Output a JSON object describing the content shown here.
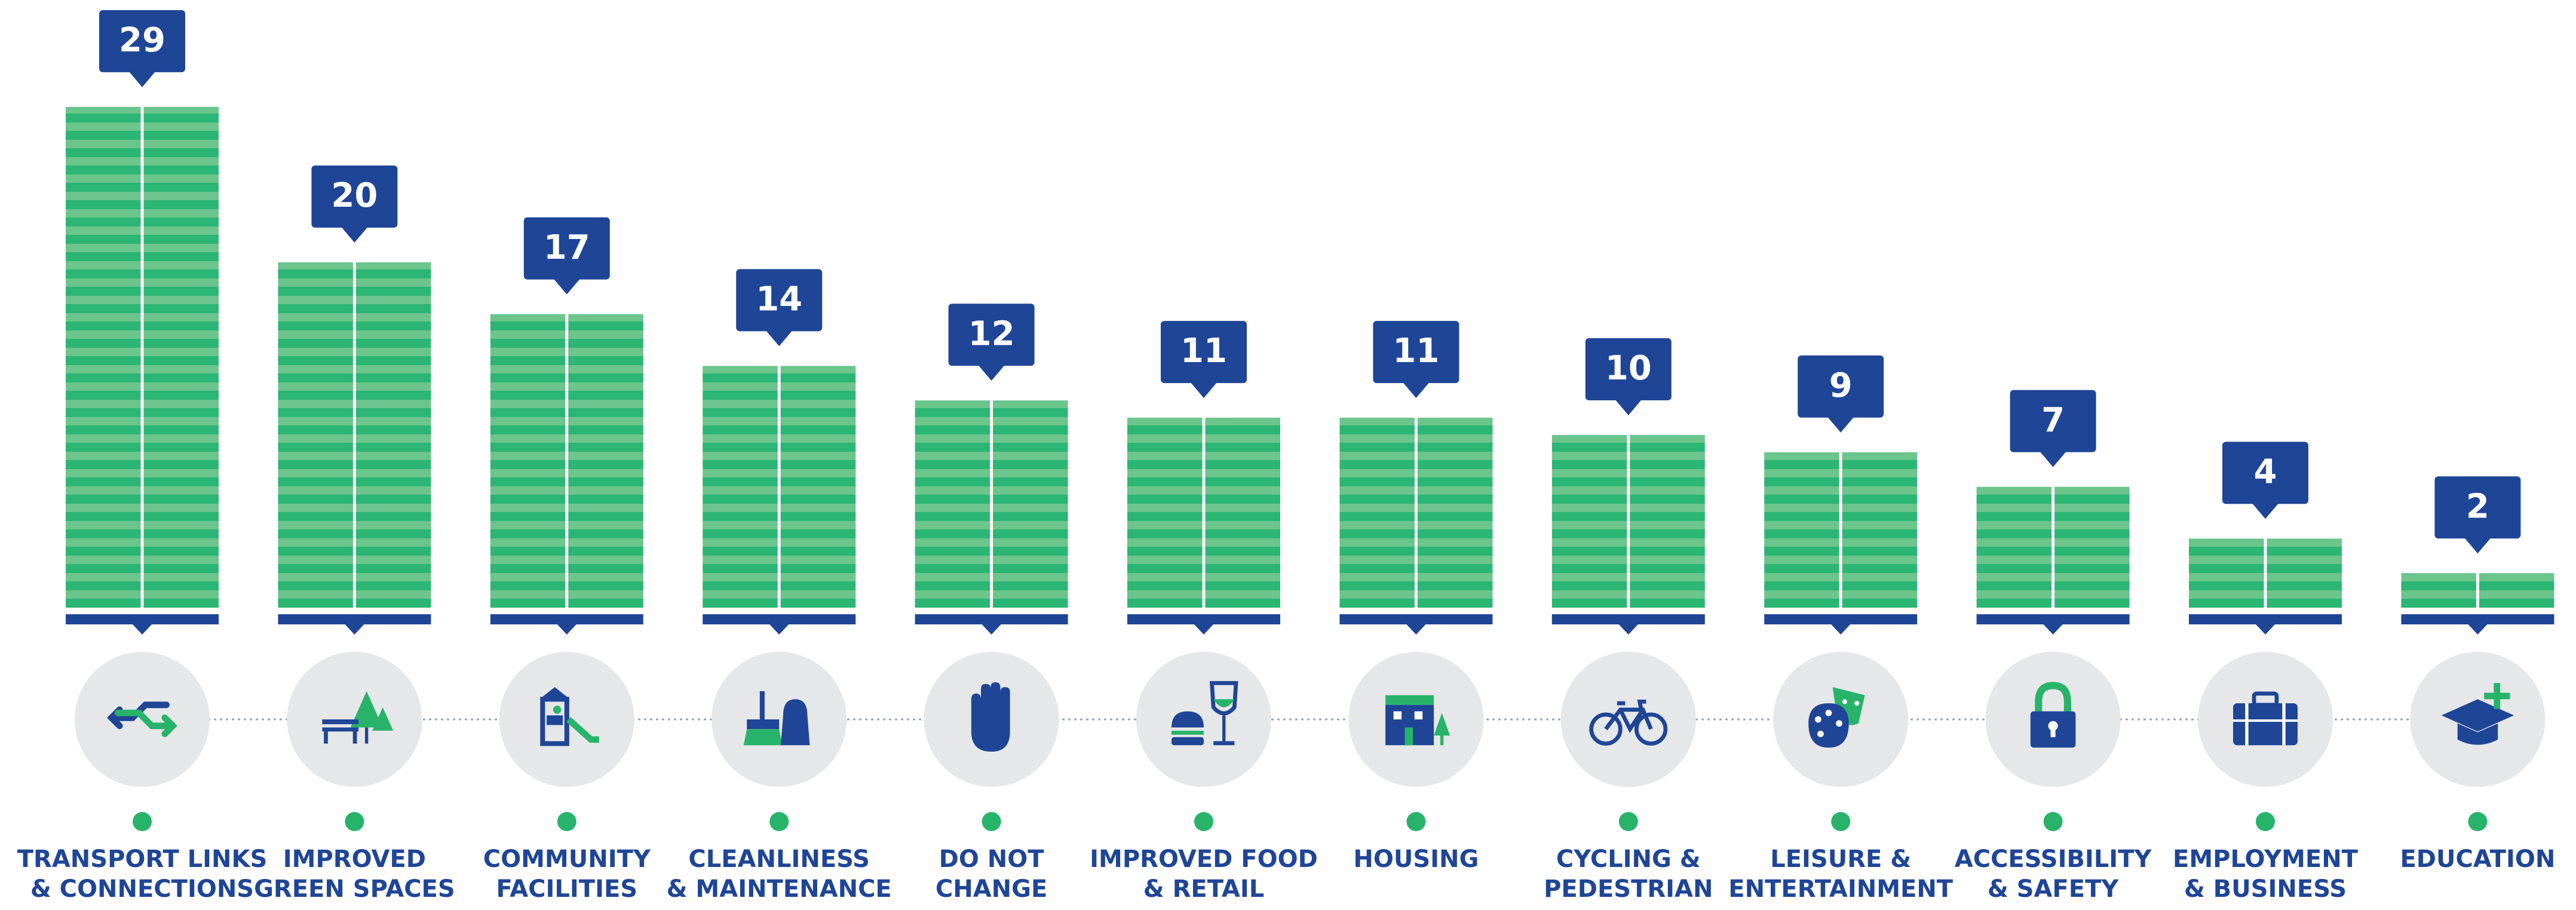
{
  "chart_data": {
    "type": "bar",
    "categories": [
      [
        "TRANSPORT LINKS",
        "& CONNECTIONS"
      ],
      [
        "IMPROVED",
        "GREEN SPACES"
      ],
      [
        "COMMUNITY",
        "FACILITIES"
      ],
      [
        "CLEANLINESS",
        "& MAINTENANCE"
      ],
      [
        "DO NOT",
        "CHANGE"
      ],
      [
        "IMPROVED FOOD",
        "& RETAIL"
      ],
      [
        "HOUSING"
      ],
      [
        "CYCLING &",
        "PEDESTRIAN"
      ],
      [
        "LEISURE &",
        "ENTERTAINMENT"
      ],
      [
        "ACCESSIBILITY",
        "& SAFETY"
      ],
      [
        "EMPLOYMENT",
        "& BUSINESS"
      ],
      [
        "EDUCATION"
      ]
    ],
    "values": [
      29,
      20,
      17,
      14,
      12,
      11,
      11,
      10,
      9,
      7,
      4,
      2
    ],
    "ylim": [
      0,
      30
    ],
    "color": "#2bb673",
    "stripe_color": "#6bc58c",
    "label_color": "#1f4597",
    "dot_color": "#27b46a"
  }
}
